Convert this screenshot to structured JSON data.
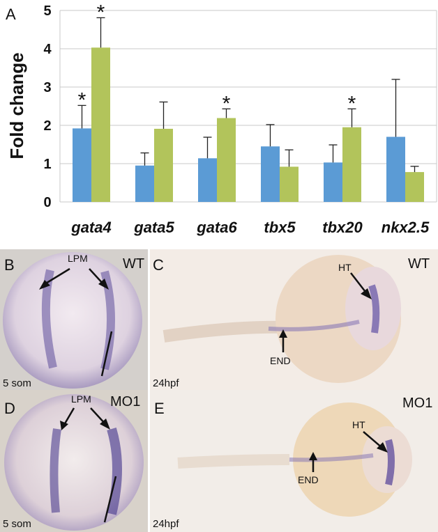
{
  "chart_data": {
    "panel_label": "A",
    "type": "bar",
    "ylabel": "Fold change",
    "ylim": [
      0,
      5
    ],
    "yticks": [
      "0",
      "1",
      "2",
      "3",
      "4",
      "5"
    ],
    "categories": [
      "gata4",
      "gata5",
      "gata6",
      "tbx5",
      "tbx20",
      "nkx2.5"
    ],
    "series": [
      {
        "color": "#5b9bd5",
        "values": [
          1.92,
          0.95,
          1.14,
          1.45,
          1.03,
          1.7
        ],
        "errors": [
          0.6,
          0.33,
          0.55,
          0.57,
          0.46,
          1.5
        ]
      },
      {
        "color": "#b2c45b",
        "values": [
          4.03,
          1.91,
          2.19,
          0.92,
          1.95,
          0.78
        ],
        "errors": [
          0.78,
          0.7,
          0.24,
          0.44,
          0.48,
          0.15
        ]
      }
    ],
    "significance": [
      {
        "category": "gata4",
        "series": 0,
        "mark": "*"
      },
      {
        "category": "gata4",
        "series": 1,
        "mark": "*"
      },
      {
        "category": "gata6",
        "series": 1,
        "mark": "*"
      },
      {
        "category": "tbx20",
        "series": 1,
        "mark": "*"
      }
    ]
  },
  "panels": {
    "b": {
      "label": "B",
      "condition": "WT",
      "stage": "5 som",
      "arrow_label": "LPM"
    },
    "c": {
      "label": "C",
      "condition": "WT",
      "stage": "24hpf",
      "label_ht": "HT",
      "label_end": "END"
    },
    "d": {
      "label": "D",
      "condition": "MO1",
      "stage": "5 som",
      "arrow_label": "LPM"
    },
    "e": {
      "label": "E",
      "condition": "MO1",
      "stage": "24hpf",
      "label_ht": "HT",
      "label_end": "END"
    }
  }
}
